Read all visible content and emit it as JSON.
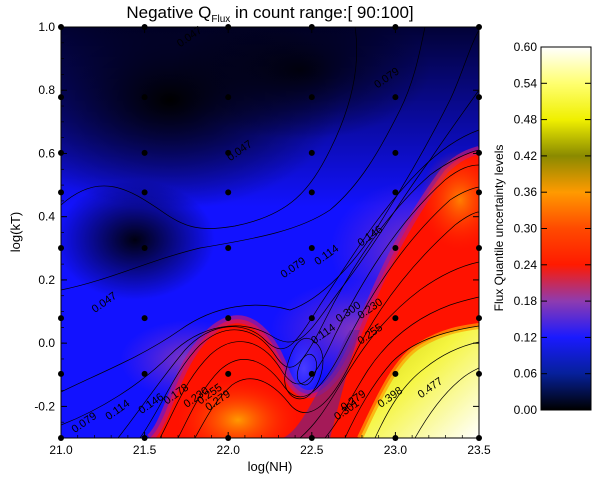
{
  "chart_data": {
    "type": "heatmap",
    "title": {
      "prefix": "Negative Q",
      "subscript": "Flux",
      "suffix": " in count range:[ 90:100]"
    },
    "xlabel": "log(NH)",
    "ylabel": "log(kT)",
    "xlim": [
      21.0,
      23.5
    ],
    "ylim": [
      -0.3,
      1.0
    ],
    "x_ticks": [
      "21.0",
      "21.5",
      "22.0",
      "22.5",
      "23.0",
      "23.5"
    ],
    "x_tick_values": [
      21.0,
      21.5,
      22.0,
      22.5,
      23.0,
      23.5
    ],
    "y_ticks": [
      "-0.2",
      "0.0",
      "0.2",
      "0.4",
      "0.6",
      "0.8",
      "1.0"
    ],
    "y_tick_values": [
      -0.2,
      0.0,
      0.2,
      0.4,
      0.6,
      0.8,
      1.0
    ],
    "grid_x": [
      21.0,
      21.5,
      22.0,
      22.5,
      23.0,
      23.5
    ],
    "grid_y": [
      -0.3,
      -0.097,
      0.079,
      0.301,
      0.477,
      0.602,
      0.778,
      1.0
    ],
    "contour_labels": [
      {
        "text": "0.047",
        "x": 21.78,
        "y": 0.96
      },
      {
        "text": "0.079",
        "x": 22.96,
        "y": 0.83
      },
      {
        "text": "0.047",
        "x": 22.08,
        "y": 0.6
      },
      {
        "text": "0.114",
        "x": 22.6,
        "y": 0.27
      },
      {
        "text": "0.146",
        "x": 22.86,
        "y": 0.33
      },
      {
        "text": "0.079",
        "x": 22.4,
        "y": 0.23
      },
      {
        "text": "0.047",
        "x": 21.27,
        "y": 0.12
      },
      {
        "text": "0.079",
        "x": 21.15,
        "y": -0.26
      },
      {
        "text": "0.114",
        "x": 21.35,
        "y": -0.22
      },
      {
        "text": "0.146",
        "x": 21.55,
        "y": -0.2
      },
      {
        "text": "0.178",
        "x": 21.7,
        "y": -0.17
      },
      {
        "text": "0.230",
        "x": 21.82,
        "y": -0.18
      },
      {
        "text": "0.255",
        "x": 21.9,
        "y": -0.17
      },
      {
        "text": "0.279",
        "x": 21.95,
        "y": -0.19
      },
      {
        "text": "0.300",
        "x": 22.73,
        "y": 0.09
      },
      {
        "text": "0.230",
        "x": 22.86,
        "y": 0.1
      },
      {
        "text": "0.255",
        "x": 22.86,
        "y": 0.02
      },
      {
        "text": "0.114",
        "x": 22.58,
        "y": 0.02
      },
      {
        "text": "0.279",
        "x": 22.76,
        "y": -0.19
      },
      {
        "text": "0.301",
        "x": 22.72,
        "y": -0.22
      },
      {
        "text": "0.398",
        "x": 22.98,
        "y": -0.18
      },
      {
        "text": "0.477",
        "x": 23.22,
        "y": -0.15
      }
    ],
    "colorbar": {
      "label": "Flux Quantile uncertainty levels",
      "range": [
        0.0,
        0.6
      ],
      "ticks": [
        "0.00",
        "0.06",
        "0.12",
        "0.18",
        "0.24",
        "0.30",
        "0.36",
        "0.42",
        "0.48",
        "0.54",
        "0.60"
      ],
      "tick_values": [
        0.0,
        0.06,
        0.12,
        0.18,
        0.24,
        0.3,
        0.36,
        0.42,
        0.48,
        0.54,
        0.6
      ],
      "colors": [
        {
          "v": 0.0,
          "c": "#000000"
        },
        {
          "v": 0.06,
          "c": "#06209a"
        },
        {
          "v": 0.12,
          "c": "#1a1aff"
        },
        {
          "v": 0.18,
          "c": "#8e3bb0"
        },
        {
          "v": 0.24,
          "c": "#ff1a00"
        },
        {
          "v": 0.3,
          "c": "#ff4a00"
        },
        {
          "v": 0.36,
          "c": "#ff9a00"
        },
        {
          "v": 0.42,
          "c": "#8a8a00"
        },
        {
          "v": 0.48,
          "c": "#f0f000"
        },
        {
          "v": 0.54,
          "c": "#ffff70"
        },
        {
          "v": 0.6,
          "c": "#ffffff"
        }
      ]
    }
  }
}
